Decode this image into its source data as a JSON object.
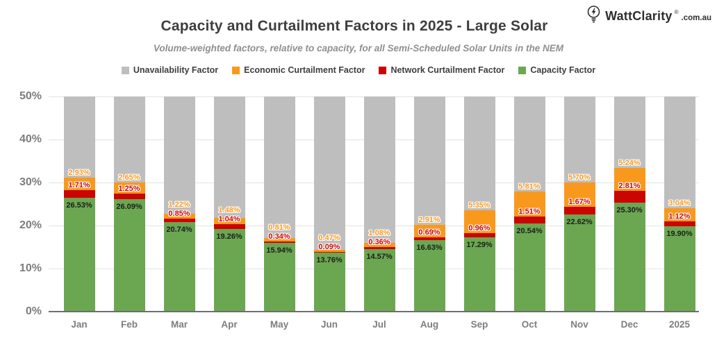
{
  "brand": {
    "name": "WattClarity",
    "reg": "®",
    "suffix": ".com.au"
  },
  "header": {
    "title": "Capacity and Curtailment Factors in 2025 - Large Solar",
    "subtitle": "Volume-weighted factors, relative to capacity, for all Semi-Scheduled Solar Units in the NEM"
  },
  "colors": {
    "unavailability": "#bebebe",
    "economic": "#f8991d",
    "network": "#cb0404",
    "capacity": "#6ba751",
    "economic_label": "#f8991d",
    "network_label": "#cc0000",
    "gridline": "#e2e2e2",
    "axis": "#6e6e6e"
  },
  "legend": [
    {
      "label": "Unavailability Factor",
      "colorKey": "unavailability"
    },
    {
      "label": "Economic Curtailment Factor",
      "colorKey": "economic"
    },
    {
      "label": "Network Curtailment Factor",
      "colorKey": "network"
    },
    {
      "label": "Capacity Factor",
      "colorKey": "capacity"
    }
  ],
  "chart_data": {
    "type": "bar",
    "stacked": true,
    "title": "Capacity and Curtailment Factors in 2025 - Large Solar",
    "categories": [
      "Jan",
      "Feb",
      "Mar",
      "Apr",
      "May",
      "Jun",
      "Jul",
      "Aug",
      "Sep",
      "Oct",
      "Nov",
      "Dec",
      "2025"
    ],
    "series": [
      {
        "name": "Capacity Factor",
        "colorKey": "capacity",
        "values": [
          26.53,
          26.09,
          20.74,
          19.26,
          15.94,
          13.76,
          14.57,
          16.63,
          17.29,
          20.54,
          22.62,
          25.3,
          19.9
        ]
      },
      {
        "name": "Network Curtailment Factor",
        "colorKey": "network",
        "values": [
          1.71,
          1.25,
          0.85,
          1.04,
          0.34,
          0.09,
          0.36,
          0.69,
          0.96,
          1.51,
          1.67,
          2.81,
          1.12
        ]
      },
      {
        "name": "Economic Curtailment Factor",
        "colorKey": "economic",
        "values": [
          2.93,
          2.65,
          1.22,
          1.48,
          0.81,
          0.47,
          1.08,
          2.91,
          5.35,
          5.81,
          5.7,
          5.24,
          3.04
        ]
      },
      {
        "name": "Unavailability Factor",
        "colorKey": "unavailability",
        "fills_to_axis_top": true
      }
    ],
    "label_format": "0.00%",
    "xlabel": "",
    "ylabel": "",
    "ylim": [
      0,
      50
    ],
    "yticks": [
      "0%",
      "10%",
      "20%",
      "30%",
      "40%",
      "50%"
    ],
    "grid": true,
    "legend_position": "top"
  }
}
